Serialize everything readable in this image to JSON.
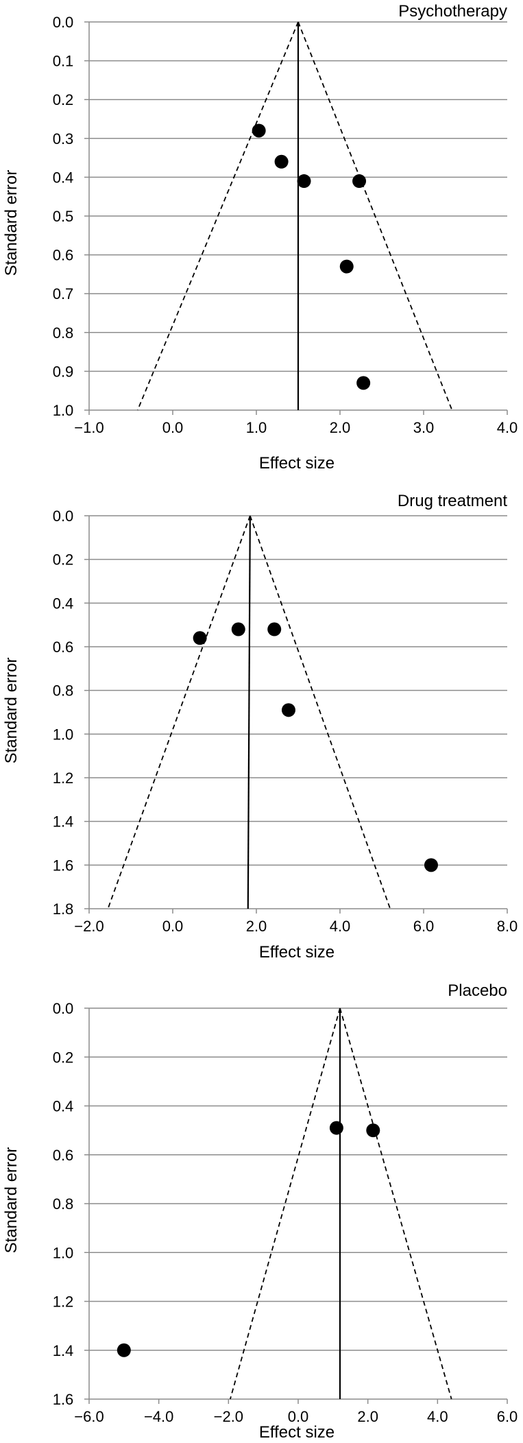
{
  "chart_data": [
    {
      "type": "scatter",
      "title": "Psychotherapy",
      "xlabel": "Effect size",
      "ylabel": "Standard error",
      "xlim": [
        -1.0,
        4.0
      ],
      "ylim": [
        0.0,
        1.0
      ],
      "y_reversed": true,
      "grid": true,
      "x_ticks": [
        "−1.0",
        "0.0",
        "1.0",
        "2.0",
        "3.0",
        "4.0"
      ],
      "y_ticks": [
        "0.0",
        "0.1",
        "0.2",
        "0.3",
        "0.4",
        "0.5",
        "0.6",
        "0.7",
        "0.8",
        "0.9",
        "1.0"
      ],
      "points": [
        {
          "x": 1.03,
          "y": 0.28
        },
        {
          "x": 1.3,
          "y": 0.36
        },
        {
          "x": 1.57,
          "y": 0.41
        },
        {
          "x": 2.23,
          "y": 0.41
        },
        {
          "x": 2.08,
          "y": 0.63
        },
        {
          "x": 2.28,
          "y": 0.93
        }
      ],
      "pooled_effect": 1.5,
      "funnel": {
        "apex": [
          1.5,
          0.0
        ],
        "left_end": [
          -0.42,
          1.0
        ],
        "right_end": [
          3.34,
          1.0
        ]
      }
    },
    {
      "type": "scatter",
      "title": "Drug treatment",
      "xlabel": "Effect size",
      "ylabel": "Standard error",
      "xlim": [
        -2.0,
        8.0
      ],
      "ylim": [
        0.0,
        1.8
      ],
      "y_reversed": true,
      "grid": true,
      "x_ticks": [
        "−2.0",
        "0.0",
        "2.0",
        "4.0",
        "6.0",
        "8.0"
      ],
      "y_ticks": [
        "0.0",
        "0.2",
        "0.4",
        "0.6",
        "0.8",
        "1.0",
        "1.2",
        "1.4",
        "1.6",
        "1.8"
      ],
      "points": [
        {
          "x": 0.65,
          "y": 0.56
        },
        {
          "x": 1.57,
          "y": 0.52
        },
        {
          "x": 2.43,
          "y": 0.52
        },
        {
          "x": 2.77,
          "y": 0.89
        },
        {
          "x": 6.18,
          "y": 1.6
        }
      ],
      "pooled_effect": 1.8,
      "funnel": {
        "apex": [
          1.85,
          0.0
        ],
        "left_end": [
          -1.55,
          1.8
        ],
        "right_end": [
          5.2,
          1.8
        ]
      }
    },
    {
      "type": "scatter",
      "title": "Placebo",
      "xlabel": "Effect size",
      "ylabel": "Standard error",
      "xlim": [
        -6.0,
        6.0
      ],
      "ylim": [
        0.0,
        1.6
      ],
      "y_reversed": true,
      "grid": true,
      "x_ticks": [
        "−6.0",
        "−4.0",
        "−2.0",
        "0.0",
        "2.0",
        "4.0",
        "6.0"
      ],
      "y_ticks": [
        "0.0",
        "0.2",
        "0.4",
        "0.6",
        "0.8",
        "1.0",
        "1.2",
        "1.4",
        "1.6"
      ],
      "points": [
        {
          "x": 1.1,
          "y": 0.49
        },
        {
          "x": 2.15,
          "y": 0.5
        },
        {
          "x": -5.0,
          "y": 1.4
        }
      ],
      "pooled_effect": 1.2,
      "funnel": {
        "apex": [
          1.2,
          0.0
        ],
        "left_end": [
          -1.95,
          1.6
        ],
        "right_end": [
          4.4,
          1.6
        ]
      }
    }
  ]
}
